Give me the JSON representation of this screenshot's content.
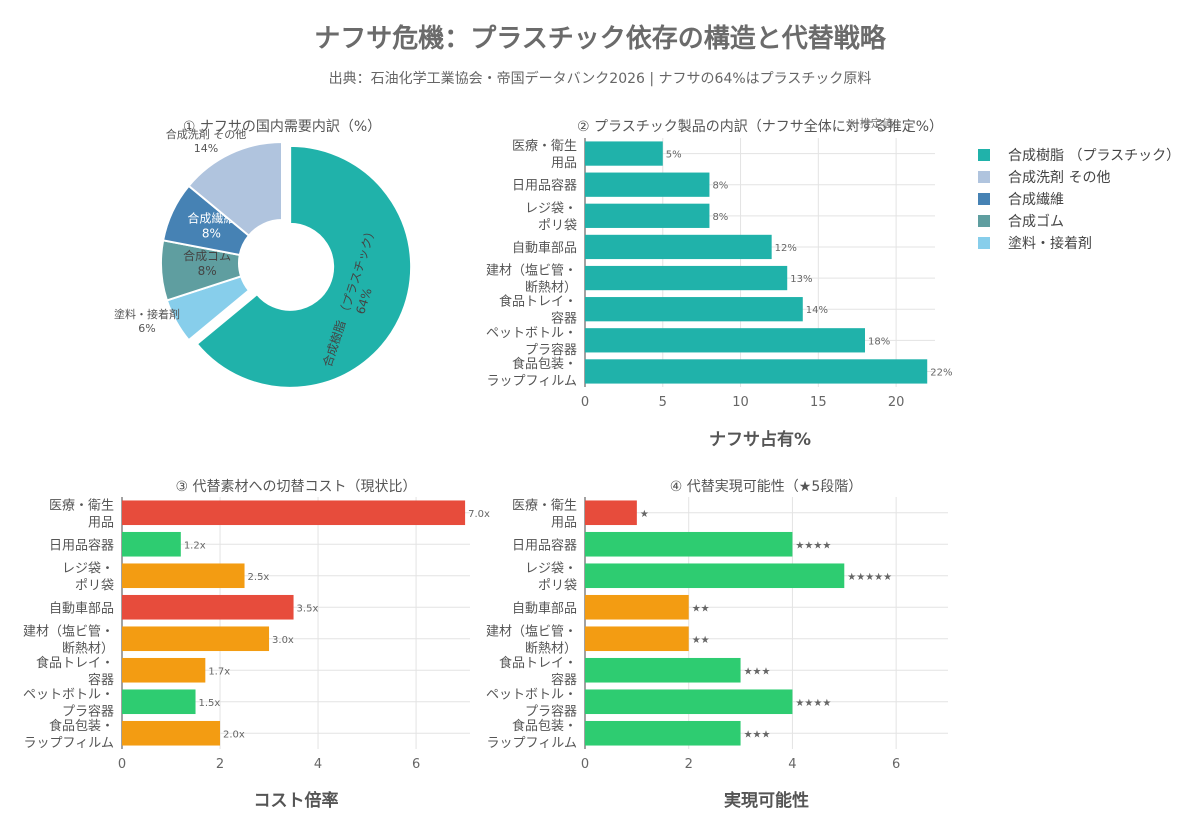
{
  "title": "ナフサ危機：プラスチック依存の構造と代替戦略",
  "subtitle": "出典：石油化学工業協会・帝国データバンク2026 | ナフサの64%はプラスチック原料",
  "chart_data": [
    {
      "id": "donut",
      "type": "pie",
      "title": "① ナフサの国内需要内訳（%）",
      "slices": [
        {
          "label": "合成樹脂 （プラスチック）",
          "text": "合成樹脂 （プラスチック）\n64%",
          "value": 64,
          "color": "#20B2AA"
        },
        {
          "label": "塗料・接着剤",
          "text": "塗料・接着剤\n6%",
          "value": 6,
          "color": "#87CEEB"
        },
        {
          "label": "合成ゴム",
          "text": "合成ゴム\n8%",
          "value": 8,
          "color": "#5F9EA0"
        },
        {
          "label": "合成繊維",
          "text": "合成繊維\n8%",
          "value": 8,
          "color": "#4682B4"
        },
        {
          "label": "合成洗剤 その他",
          "text": "合成洗剤 その他\n14%",
          "value": 14,
          "color": "#B0C4DE"
        }
      ],
      "legend_position": "right",
      "legend_order": [
        "合成樹脂 （プラスチック）",
        "合成洗剤 その他",
        "合成繊維",
        "合成ゴム",
        "塗料・接着剤"
      ]
    },
    {
      "id": "share",
      "type": "bar",
      "orientation": "horizontal",
      "title": "② プラスチック製品の内訳（ナフサ全体に対する推定%）",
      "annotation": "※ 推定値",
      "categories": [
        "医療・衛生\n用品",
        "日用品容器",
        "レジ袋・\nポリ袋",
        "自動車部品",
        "建材（塩ビ管・\n断熱材）",
        "食品トレイ・\n容器",
        "ペットボトル・\nプラ容器",
        "食品包装・\nラップフィルム"
      ],
      "values": [
        5,
        8,
        8,
        12,
        13,
        14,
        18,
        22
      ],
      "labels": [
        "5%",
        "8%",
        "8%",
        "12%",
        "13%",
        "14%",
        "18%",
        "22%"
      ],
      "color": "#20B2AA",
      "xlabel": "ナフサ占有%",
      "xlim": [
        0,
        22.5
      ],
      "xticks": [
        0,
        5,
        10,
        15,
        20
      ]
    },
    {
      "id": "cost",
      "type": "bar",
      "orientation": "horizontal",
      "title": "③ 代替素材への切替コスト（現状比）",
      "categories": [
        "医療・衛生\n用品",
        "日用品容器",
        "レジ袋・\nポリ袋",
        "自動車部品",
        "建材（塩ビ管・\n断熱材）",
        "食品トレイ・\n容器",
        "ペットボトル・\nプラ容器",
        "食品包装・\nラップフィルム"
      ],
      "values": [
        7.0,
        1.2,
        2.5,
        3.5,
        3.0,
        1.7,
        1.5,
        2.0
      ],
      "labels": [
        "7.0x",
        "1.2x",
        "2.5x",
        "3.5x",
        "3.0x",
        "1.7x",
        "1.5x",
        "2.0x"
      ],
      "colors": [
        "#E74C3C",
        "#2ECC71",
        "#F39C12",
        "#E74C3C",
        "#F39C12",
        "#F39C12",
        "#2ECC71",
        "#F39C12"
      ],
      "xlabel": "コスト倍率",
      "xlim": [
        0,
        7.1
      ],
      "xticks": [
        0,
        2,
        4,
        6
      ]
    },
    {
      "id": "feasibility",
      "type": "bar",
      "orientation": "horizontal",
      "title": "④ 代替実現可能性（★5段階）",
      "categories": [
        "医療・衛生\n用品",
        "日用品容器",
        "レジ袋・\nポリ袋",
        "自動車部品",
        "建材（塩ビ管・\n断熱材）",
        "食品トレイ・\n容器",
        "ペットボトル・\nプラ容器",
        "食品包装・\nラップフィルム"
      ],
      "values": [
        1,
        4,
        5,
        2,
        2,
        3,
        4,
        3
      ],
      "labels": [
        "★",
        "★★★★",
        "★★★★★",
        "★★",
        "★★",
        "★★★",
        "★★★★",
        "★★★"
      ],
      "colors": [
        "#E74C3C",
        "#2ECC71",
        "#2ECC71",
        "#F39C12",
        "#F39C12",
        "#2ECC71",
        "#2ECC71",
        "#2ECC71"
      ],
      "xlabel": "実現可能性",
      "xlim": [
        0,
        7
      ],
      "xticks": [
        0,
        2,
        4,
        6
      ]
    }
  ]
}
